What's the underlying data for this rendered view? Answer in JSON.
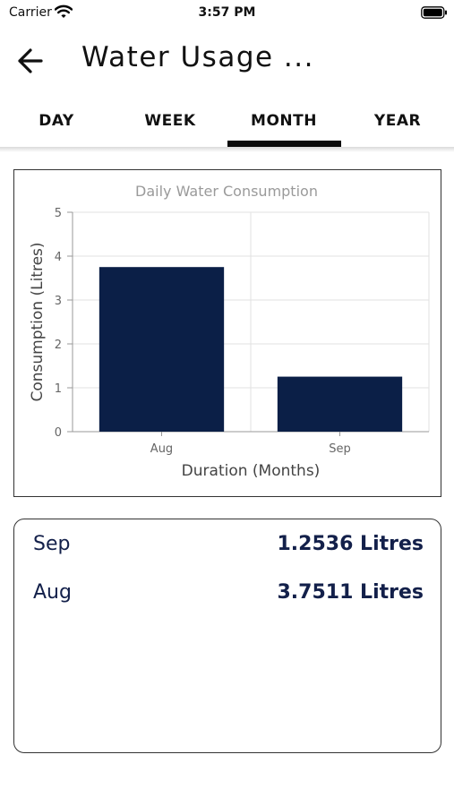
{
  "status_bar": {
    "carrier": "Carrier",
    "time": "3:57 PM",
    "wifi_icon": "wifi-icon",
    "battery_icon": "battery-icon"
  },
  "header": {
    "title": "Water Usage ...",
    "back_icon": "arrow-left-icon"
  },
  "tabs": [
    {
      "label": "DAY",
      "selected": false
    },
    {
      "label": "WEEK",
      "selected": false
    },
    {
      "label": "MONTH",
      "selected": true
    },
    {
      "label": "YEAR",
      "selected": false
    }
  ],
  "colors": {
    "bar": "#0b1f47",
    "summary_text": "#13204a",
    "chart_title": "#9a9a9a",
    "grid": "#e2e2e2"
  },
  "chart_data": {
    "type": "bar",
    "title": "Daily Water Consumption",
    "xlabel": "Duration (Months)",
    "ylabel": "Consumption (Litres)",
    "categories": [
      "Aug",
      "Sep"
    ],
    "values": [
      3.7511,
      1.2536
    ],
    "ylim": [
      0,
      5
    ],
    "yticks": [
      "0",
      "1",
      "2",
      "3",
      "4",
      "5"
    ],
    "grid": true
  },
  "summary": {
    "rows": [
      {
        "month": "Sep",
        "value": "1.2536 Litres"
      },
      {
        "month": "Aug",
        "value": "3.7511 Litres"
      }
    ]
  }
}
